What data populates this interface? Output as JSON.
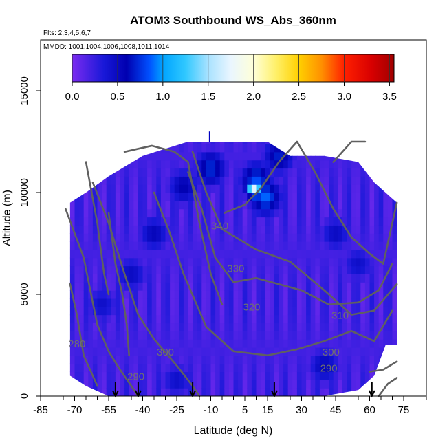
{
  "chart_data": {
    "type": "heatmap",
    "title": "ATOM3 Southbound WS_Abs_360nm",
    "flights_note": "Flts: 2,3,4,5,6,7",
    "dates_note": "MMDD: 1001,1004,1006,1008,1011,1014",
    "xlabel": "Latitude (deg N)",
    "ylabel": "Altitude (m)",
    "xlim": [
      -85,
      85
    ],
    "ylim": [
      0,
      17500
    ],
    "x_ticks": [
      -85,
      -70,
      -55,
      -40,
      -25,
      -10,
      5,
      15,
      30,
      45,
      60,
      75
    ],
    "x_tick_labels": [
      "-85",
      "-70",
      "-55",
      "-40",
      "-25",
      "-10",
      "5",
      "15",
      "30",
      "45",
      "60",
      "75"
    ],
    "y_ticks": [
      0,
      5000,
      10000,
      15000
    ],
    "y_tick_labels": [
      "0",
      "5000",
      "10000",
      "15000"
    ],
    "colorbar": {
      "range": [
        0,
        3.55
      ],
      "ticks": [
        0.0,
        0.5,
        1.0,
        1.5,
        2.0,
        2.5,
        3.0,
        3.5
      ],
      "tick_labels": [
        "0.0",
        "0.5",
        "1.0",
        "1.5",
        "2.0",
        "2.5",
        "3.0",
        "3.5"
      ],
      "stops": [
        {
          "v": 0.0,
          "color": "#7b2bf0"
        },
        {
          "v": 0.35,
          "color": "#1818d8"
        },
        {
          "v": 0.6,
          "color": "#0000b0"
        },
        {
          "v": 0.85,
          "color": "#0050ff"
        },
        {
          "v": 1.0,
          "color": "#00a4ff"
        },
        {
          "v": 1.25,
          "color": "#30c8ff"
        },
        {
          "v": 1.5,
          "color": "#a8e2ff"
        },
        {
          "v": 1.75,
          "color": "#eaf6ff"
        },
        {
          "v": 2.0,
          "color": "#ffffd8"
        },
        {
          "v": 2.25,
          "color": "#fff068"
        },
        {
          "v": 2.5,
          "color": "#ffd000"
        },
        {
          "v": 2.75,
          "color": "#ff9000"
        },
        {
          "v": 3.0,
          "color": "#ff2000"
        },
        {
          "v": 3.3,
          "color": "#d80000"
        },
        {
          "v": 3.55,
          "color": "#a00000"
        }
      ]
    },
    "data_extent": [
      {
        "lat": -72,
        "alt_min": 1000,
        "alt_max": 9500
      },
      {
        "lat": -65,
        "alt_min": 500,
        "alt_max": 10000
      },
      {
        "lat": -55,
        "alt_min": 0,
        "alt_max": 10800
      },
      {
        "lat": -40,
        "alt_min": 0,
        "alt_max": 11800
      },
      {
        "lat": -20,
        "alt_min": 0,
        "alt_max": 12500
      },
      {
        "lat": 0,
        "alt_min": 0,
        "alt_max": 12500
      },
      {
        "lat": 15,
        "alt_min": 0,
        "alt_max": 12500
      },
      {
        "lat": 25,
        "alt_min": 0,
        "alt_max": 11800
      },
      {
        "lat": 40,
        "alt_min": 0,
        "alt_max": 11800
      },
      {
        "lat": 55,
        "alt_min": 300,
        "alt_max": 11500
      },
      {
        "lat": 62,
        "alt_min": 1000,
        "alt_max": 10500
      },
      {
        "lat": 67,
        "alt_min": 2500,
        "alt_max": 10000
      },
      {
        "lat": 72,
        "alt_min": 2500,
        "alt_max": 9500
      }
    ],
    "hotspots": [
      {
        "lat": -35,
        "alt": 8000,
        "value": 0.55
      },
      {
        "lat": -45,
        "alt": 6000,
        "value": 0.5
      },
      {
        "lat": -58,
        "alt": 4500,
        "value": 0.45
      },
      {
        "lat": -22,
        "alt": 10300,
        "value": 0.6
      },
      {
        "lat": -10,
        "alt": 11200,
        "value": 0.75
      },
      {
        "lat": 14,
        "alt": 9800,
        "value": 0.9
      },
      {
        "lat": 10,
        "alt": 10600,
        "value": 0.85
      },
      {
        "lat": 45,
        "alt": 8000,
        "value": 0.5
      },
      {
        "lat": 55,
        "alt": 6500,
        "value": 0.45
      },
      {
        "lat": 40,
        "alt": 1500,
        "value": 0.55
      },
      {
        "lat": -25,
        "alt": 800,
        "value": 0.45
      },
      {
        "lat": 20,
        "alt": 11800,
        "value": 0.7
      }
    ],
    "hotspot_peak": {
      "lat": 9,
      "alt": 10200,
      "value": 1.7
    },
    "theta_contours": [
      {
        "level": 280,
        "label": "280",
        "label_lat": -69,
        "label_alt": 2400
      },
      {
        "level": 290,
        "label": "290",
        "label_lat": -43,
        "label_alt": 800
      },
      {
        "level": 290,
        "label": "290",
        "label_lat": 42,
        "label_alt": 1200
      },
      {
        "level": 300,
        "label": "300",
        "label_lat": -30,
        "label_alt": 2000
      },
      {
        "level": 300,
        "label": "300",
        "label_lat": 43,
        "label_alt": 2000
      },
      {
        "level": 310,
        "label": "310",
        "label_lat": 47,
        "label_alt": 3800
      },
      {
        "level": 320,
        "label": "320",
        "label_lat": 8,
        "label_alt": 4200
      },
      {
        "level": 330,
        "label": "330",
        "label_lat": 1,
        "label_alt": 6100
      },
      {
        "level": 340,
        "label": "340",
        "label_lat": -6,
        "label_alt": 8200
      }
    ],
    "profile_markers_lat": [
      -52,
      -42,
      -18,
      18,
      61
    ]
  }
}
